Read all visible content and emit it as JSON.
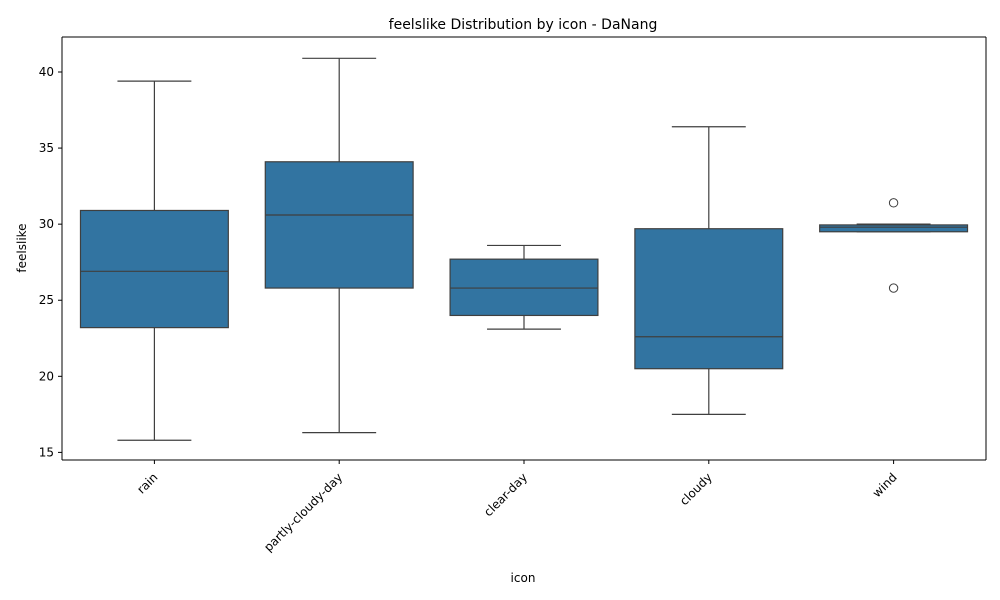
{
  "chart_data": {
    "type": "box",
    "title": "feelslike Distribution by icon - DaNang",
    "xlabel": "icon",
    "ylabel": "feelslike",
    "ylim": [
      14.5,
      42.3
    ],
    "yticks": [
      15,
      20,
      25,
      30,
      35,
      40
    ],
    "ytick_labels": [
      "15",
      "20",
      "25",
      "30",
      "35",
      "40"
    ],
    "grid": false,
    "box_color": "#3274a1",
    "line_color": "#3f3f3f",
    "categories": [
      "rain",
      "partly-cloudy-day",
      "clear-day",
      "cloudy",
      "wind"
    ],
    "boxes": [
      {
        "category": "rain",
        "whisker_low": 15.8,
        "q1": 23.2,
        "median": 26.9,
        "q3": 30.9,
        "whisker_high": 39.4,
        "outliers": []
      },
      {
        "category": "partly-cloudy-day",
        "whisker_low": 16.3,
        "q1": 25.8,
        "median": 30.6,
        "q3": 34.1,
        "whisker_high": 40.9,
        "outliers": []
      },
      {
        "category": "clear-day",
        "whisker_low": 23.1,
        "q1": 24.0,
        "median": 25.8,
        "q3": 27.7,
        "whisker_high": 28.6,
        "outliers": []
      },
      {
        "category": "cloudy",
        "whisker_low": 17.5,
        "q1": 20.5,
        "median": 22.6,
        "q3": 29.7,
        "whisker_high": 36.4,
        "outliers": []
      },
      {
        "category": "wind",
        "whisker_low": 29.5,
        "q1": 29.5,
        "median": 29.8,
        "q3": 29.95,
        "whisker_high": 30.0,
        "outliers": [
          31.4,
          25.8
        ]
      }
    ]
  }
}
